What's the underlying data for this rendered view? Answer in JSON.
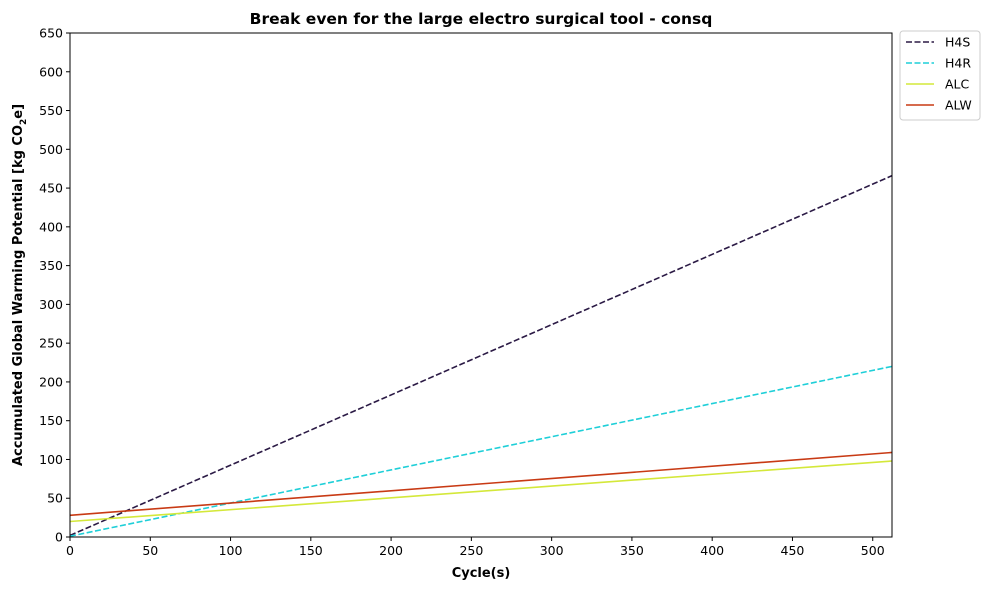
{
  "chart_data": {
    "type": "line",
    "title": "Break even for the large electro surgical tool - consq",
    "xlabel": "Cycle(s)",
    "ylabel_main": "Accumulated Global Warming Potential [kg CO",
    "ylabel_sub": "2",
    "ylabel_end": "e]",
    "xlim": [
      0,
      512
    ],
    "ylim": [
      0,
      650
    ],
    "xticks": [
      0,
      50,
      100,
      150,
      200,
      250,
      300,
      350,
      400,
      450,
      500
    ],
    "yticks": [
      0,
      50,
      100,
      150,
      200,
      250,
      300,
      350,
      400,
      450,
      500,
      550,
      600,
      650
    ],
    "grid": false,
    "legend_position": "outside-top-right",
    "series": [
      {
        "name": "H4S",
        "color": "#2b1a45",
        "dash": "dashed",
        "x": [
          0,
          512
        ],
        "y": [
          2,
          466
        ]
      },
      {
        "name": "H4R",
        "color": "#1fcfd8",
        "dash": "dashed",
        "x": [
          0,
          512
        ],
        "y": [
          1,
          220
        ]
      },
      {
        "name": "ALC",
        "color": "#d4e83a",
        "dash": "solid",
        "x": [
          0,
          512
        ],
        "y": [
          20,
          98
        ]
      },
      {
        "name": "ALW",
        "color": "#c83a14",
        "dash": "solid",
        "x": [
          0,
          512
        ],
        "y": [
          28,
          109
        ]
      }
    ]
  }
}
